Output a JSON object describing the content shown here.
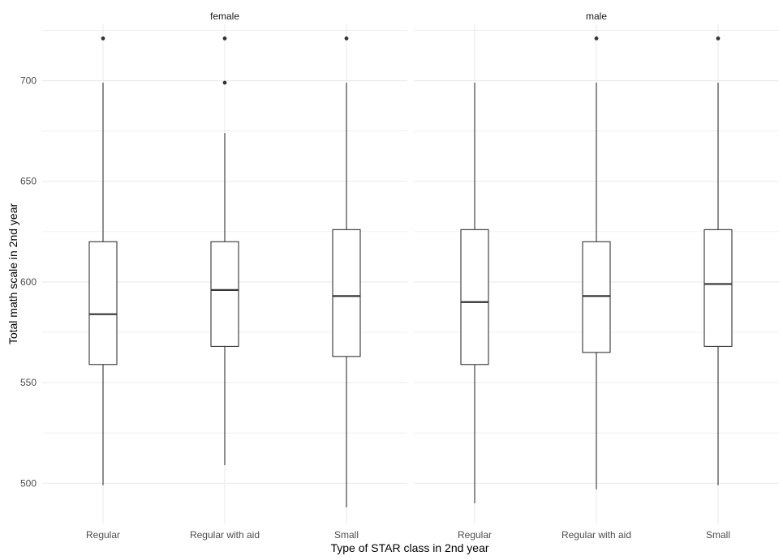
{
  "chart_data": {
    "type": "boxplot",
    "facet_labels": [
      "female",
      "male"
    ],
    "categories": [
      "Regular",
      "Regular with aid",
      "Small"
    ],
    "xlabel": "Type of STAR class in 2nd year",
    "ylabel": "Total math scale in 2nd year",
    "ylim": [
      480,
      728
    ],
    "yticks": [
      500,
      550,
      600,
      650,
      700
    ],
    "grid": true,
    "panels": [
      {
        "facet": "female",
        "boxes": [
          {
            "category": "Regular",
            "min": 499,
            "q1": 559,
            "median": 584,
            "q3": 620,
            "max": 699,
            "outliers": [
              721
            ]
          },
          {
            "category": "Regular with aid",
            "min": 509,
            "q1": 568,
            "median": 596,
            "q3": 620,
            "max": 674,
            "outliers": [
              699,
              721
            ]
          },
          {
            "category": "Small",
            "min": 488,
            "q1": 563,
            "median": 593,
            "q3": 626,
            "max": 699,
            "outliers": [
              721
            ]
          }
        ]
      },
      {
        "facet": "male",
        "boxes": [
          {
            "category": "Regular",
            "min": 490,
            "q1": 559,
            "median": 590,
            "q3": 626,
            "max": 699,
            "outliers": []
          },
          {
            "category": "Regular with aid",
            "min": 497,
            "q1": 565,
            "median": 593,
            "q3": 620,
            "max": 699,
            "outliers": [
              721
            ]
          },
          {
            "category": "Small",
            "min": 499,
            "q1": 568,
            "median": 599,
            "q3": 626,
            "max": 699,
            "outliers": [
              721
            ]
          }
        ]
      }
    ],
    "colors": {
      "grid": "#ebebeb",
      "box": "#333333",
      "outlier": "#333333"
    }
  }
}
